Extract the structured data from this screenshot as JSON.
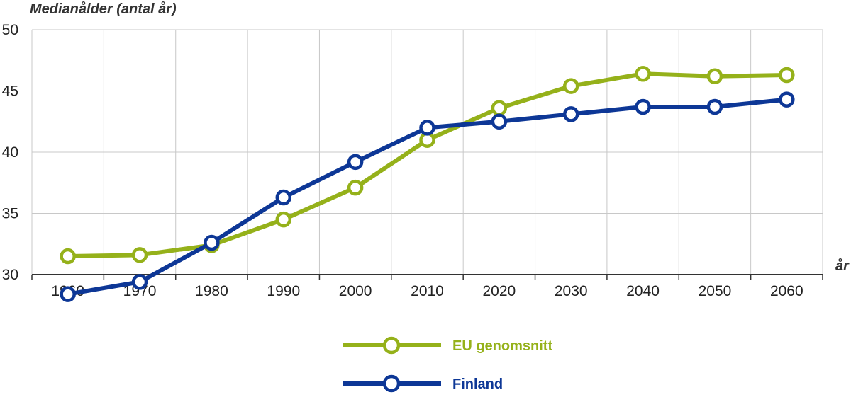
{
  "chart_data": {
    "type": "line",
    "ylabel": "Medianålder (antal år)",
    "xlabel": "år",
    "ylim": [
      30,
      50
    ],
    "yticks": [
      30,
      35,
      40,
      45,
      50
    ],
    "categories": [
      "1960",
      "1970",
      "1980",
      "1990",
      "2000",
      "2010",
      "2020",
      "2030",
      "2040",
      "2050",
      "2060"
    ],
    "grid": true,
    "legend_position": "bottom-center",
    "series": [
      {
        "name": "EU genomsnitt",
        "color": "#95B11A",
        "values": [
          31.5,
          31.6,
          32.4,
          34.5,
          37.1,
          41.0,
          43.6,
          45.4,
          46.4,
          46.2,
          46.3
        ]
      },
      {
        "name": "Finland",
        "color": "#0D3796",
        "values": [
          28.4,
          29.4,
          32.6,
          36.3,
          39.2,
          42.0,
          42.5,
          43.1,
          43.7,
          43.7,
          44.3
        ]
      }
    ]
  }
}
